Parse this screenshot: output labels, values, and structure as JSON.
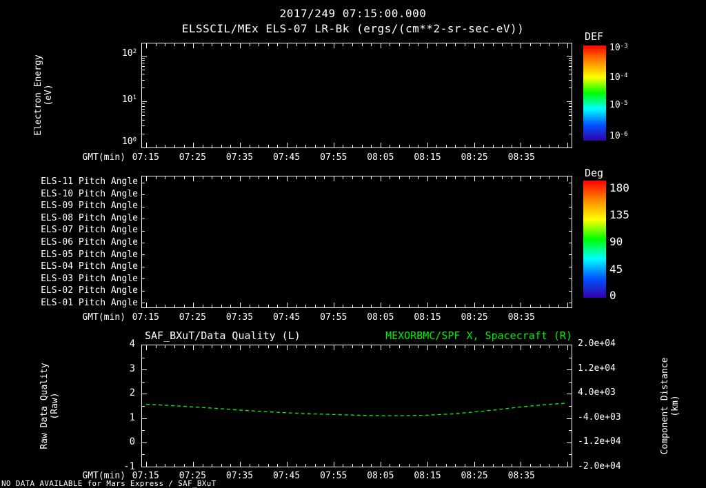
{
  "colors": {
    "background": "#000000",
    "foreground": "#ffffff",
    "green": "#00ee00",
    "colorbar_stops": [
      "#ff0000",
      "#ff8800",
      "#ffff00",
      "#00ff00",
      "#00ffff",
      "#0055ff",
      "#3300aa"
    ]
  },
  "header": {
    "timestamp": "2017/249 07:15:00.000",
    "title": "ELSSCIL/MEx ELS-07 LR-Bk (ergs/(cm**2-sr-sec-eV))"
  },
  "time_axis": {
    "label": "GMT(min)",
    "ticks": [
      "07:15",
      "07:25",
      "07:35",
      "07:45",
      "07:55",
      "08:05",
      "08:15",
      "08:25",
      "08:35"
    ]
  },
  "panel1": {
    "ylabel": [
      "Electron Energy",
      "(eV)"
    ],
    "yticks": [
      {
        "base": "10",
        "exp": "2"
      },
      {
        "base": "10",
        "exp": "1"
      },
      {
        "base": "10",
        "exp": "0"
      }
    ],
    "colorbar": {
      "title": "DEF",
      "ticks": [
        {
          "base": "10",
          "exp": "-3"
        },
        {
          "base": "10",
          "exp": "-4"
        },
        {
          "base": "10",
          "exp": "-5"
        },
        {
          "base": "10",
          "exp": "-6"
        }
      ]
    }
  },
  "panel2": {
    "rows": [
      "ELS-11 Pitch Angle",
      "ELS-10 Pitch Angle",
      "ELS-09 Pitch Angle",
      "ELS-08 Pitch Angle",
      "ELS-07 Pitch Angle",
      "ELS-06 Pitch Angle",
      "ELS-05 Pitch Angle",
      "ELS-04 Pitch Angle",
      "ELS-03 Pitch Angle",
      "ELS-02 Pitch Angle",
      "ELS-01 Pitch Angle"
    ],
    "colorbar": {
      "title": "Deg",
      "ticks": [
        "180",
        "135",
        "90",
        "45",
        "0"
      ]
    }
  },
  "panel3": {
    "title_left": "SAF_BXuT/Data Quality (L)",
    "title_right": "MEXORBMC/SPF X, Spacecraft (R)",
    "ylabel_left": [
      "Raw Data Quality",
      "(Raw)"
    ],
    "yticks_left": [
      "4",
      "3",
      "2",
      "1",
      "0",
      "-1"
    ],
    "ylabel_right": [
      "Component Distance",
      "(km)"
    ],
    "yticks_right": [
      "2.0e+04",
      "1.2e+04",
      "4.0e+03",
      "-4.0e+03",
      "-1.2e+04",
      "-2.0e+04"
    ]
  },
  "footer": {
    "notice": "NO DATA AVAILABLE for Mars Express / SAF_BXuT"
  },
  "chart_data": [
    {
      "type": "heatmap",
      "title": "ELSSCIL/MEx ELS-07 LR-Bk",
      "units": "ergs/(cm**2-sr-sec-eV)",
      "xlabel": "GMT(min)",
      "x_ticks": [
        "07:15",
        "07:25",
        "07:35",
        "07:45",
        "07:55",
        "08:05",
        "08:15",
        "08:25",
        "08:35"
      ],
      "ylabel": "Electron Energy (eV)",
      "y_scale": "log",
      "y_ticks": [
        1,
        10,
        100
      ],
      "colorbar": {
        "title": "DEF",
        "scale": "log",
        "tick_values": [
          0.001,
          0.0001,
          1e-05,
          1e-06
        ]
      },
      "values": []
    },
    {
      "type": "heatmap",
      "xlabel": "GMT(min)",
      "x_ticks": [
        "07:15",
        "07:25",
        "07:35",
        "07:45",
        "07:55",
        "08:05",
        "08:15",
        "08:25",
        "08:35"
      ],
      "rows": [
        "ELS-11 Pitch Angle",
        "ELS-10 Pitch Angle",
        "ELS-09 Pitch Angle",
        "ELS-08 Pitch Angle",
        "ELS-07 Pitch Angle",
        "ELS-06 Pitch Angle",
        "ELS-05 Pitch Angle",
        "ELS-04 Pitch Angle",
        "ELS-03 Pitch Angle",
        "ELS-02 Pitch Angle",
        "ELS-01 Pitch Angle"
      ],
      "colorbar": {
        "title": "Deg",
        "tick_values": [
          180,
          135,
          90,
          45,
          0
        ]
      },
      "values": []
    },
    {
      "type": "line",
      "titles": [
        "SAF_BXuT/Data Quality (L)",
        "MEXORBMC/SPF X, Spacecraft (R)"
      ],
      "xlabel": "GMT(min)",
      "x_ticks": [
        "07:15",
        "07:25",
        "07:35",
        "07:45",
        "07:55",
        "08:05",
        "08:15",
        "08:25",
        "08:35"
      ],
      "ylabel_left": "Raw Data Quality (Raw)",
      "ylim_left": [
        -1,
        4
      ],
      "yticks_left": [
        4,
        3,
        2,
        1,
        0,
        -1
      ],
      "ylabel_right": "Component Distance (km)",
      "ylim_right": [
        -20000,
        20000
      ],
      "yticks_right": [
        20000,
        12000,
        4000,
        -4000,
        -12000,
        -20000
      ],
      "grid": false,
      "series": [
        {
          "name": "MEXORBMC/SPF X, Spacecraft",
          "axis": "right",
          "style": "dashed",
          "color": "#00ee00",
          "x": [
            "07:15",
            "07:20",
            "07:25",
            "07:30",
            "07:35",
            "07:40",
            "07:45",
            "07:50",
            "07:55",
            "08:00",
            "08:05",
            "08:10",
            "08:15",
            "08:20",
            "08:25",
            "08:30",
            "08:35",
            "08:40",
            "08:45"
          ],
          "y_km": [
            560,
            160,
            -320,
            -800,
            -1360,
            -1840,
            -2240,
            -2560,
            -2800,
            -3040,
            -3200,
            -3200,
            -3040,
            -2640,
            -2000,
            -1200,
            -320,
            400,
            960
          ]
        },
        {
          "name": "SAF_BXuT/Data Quality",
          "axis": "left",
          "x": [],
          "y": []
        }
      ]
    }
  ]
}
